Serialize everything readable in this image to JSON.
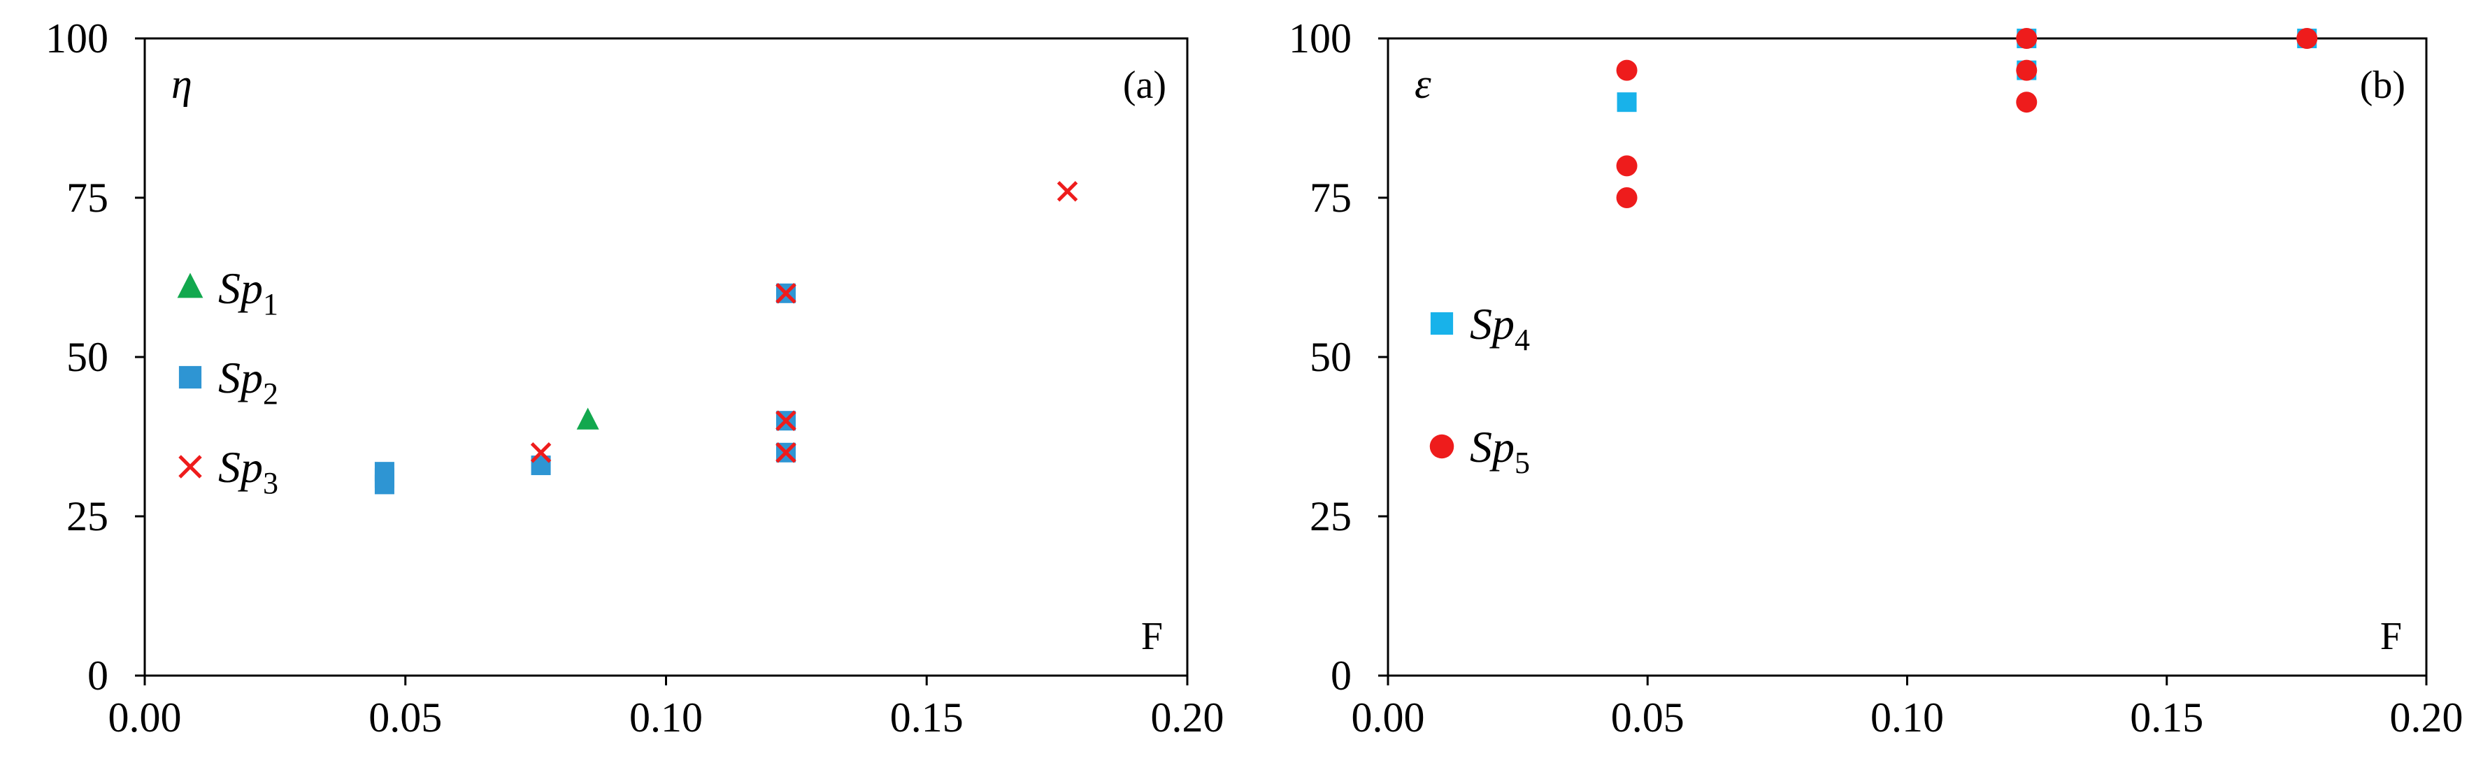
{
  "colors": {
    "Sp1": "#12a84e",
    "Sp2": "#2e95d3",
    "Sp3": "#ee1c1c",
    "Sp4": "#18b2ea",
    "Sp5": "#ee1c1c",
    "axis": "#000000"
  },
  "chart_data": [
    {
      "type": "scatter",
      "panel": "(a)",
      "ylabel": "η",
      "xlabel": "F",
      "xlim": [
        0.0,
        0.2
      ],
      "ylim": [
        0,
        100
      ],
      "xticks": [
        "0.00",
        "0.05",
        "0.10",
        "0.15",
        "0.20"
      ],
      "yticks": [
        "0",
        "25",
        "50",
        "75",
        "100"
      ],
      "grid": false,
      "legend_position": "left",
      "series": [
        {
          "name": "Sp1",
          "base": "Sp",
          "sub": "1",
          "marker": "triangle",
          "color_key": "Sp1",
          "points": [
            {
              "x": 0.085,
              "y": 40
            }
          ]
        },
        {
          "name": "Sp2",
          "base": "Sp",
          "sub": "2",
          "marker": "square",
          "color_key": "Sp2",
          "points": [
            {
              "x": 0.046,
              "y": 30
            },
            {
              "x": 0.046,
              "y": 31
            },
            {
              "x": 0.046,
              "y": 32
            },
            {
              "x": 0.076,
              "y": 33
            },
            {
              "x": 0.123,
              "y": 35
            },
            {
              "x": 0.123,
              "y": 40
            },
            {
              "x": 0.123,
              "y": 60
            }
          ]
        },
        {
          "name": "Sp3",
          "base": "Sp",
          "sub": "3",
          "marker": "cross",
          "color_key": "Sp3",
          "points": [
            {
              "x": 0.076,
              "y": 35
            },
            {
              "x": 0.123,
              "y": 35
            },
            {
              "x": 0.123,
              "y": 40
            },
            {
              "x": 0.123,
              "y": 60
            },
            {
              "x": 0.177,
              "y": 76
            }
          ]
        }
      ]
    },
    {
      "type": "scatter",
      "panel": "(b)",
      "ylabel": "ε",
      "xlabel": "F",
      "xlim": [
        0.0,
        0.2
      ],
      "ylim": [
        0,
        100
      ],
      "xticks": [
        "0.00",
        "0.05",
        "0.10",
        "0.15",
        "0.20"
      ],
      "yticks": [
        "0",
        "25",
        "50",
        "75",
        "100"
      ],
      "grid": false,
      "legend_position": "left",
      "series": [
        {
          "name": "Sp4",
          "base": "Sp",
          "sub": "4",
          "marker": "square",
          "color_key": "Sp4",
          "points": [
            {
              "x": 0.046,
              "y": 90
            },
            {
              "x": 0.123,
              "y": 95
            },
            {
              "x": 0.123,
              "y": 100
            },
            {
              "x": 0.177,
              "y": 100
            }
          ]
        },
        {
          "name": "Sp5",
          "base": "Sp",
          "sub": "5",
          "marker": "circle",
          "color_key": "Sp5",
          "points": [
            {
              "x": 0.046,
              "y": 75
            },
            {
              "x": 0.046,
              "y": 80
            },
            {
              "x": 0.046,
              "y": 95
            },
            {
              "x": 0.123,
              "y": 90
            },
            {
              "x": 0.123,
              "y": 95
            },
            {
              "x": 0.123,
              "y": 100
            },
            {
              "x": 0.177,
              "y": 100
            }
          ]
        }
      ]
    }
  ]
}
